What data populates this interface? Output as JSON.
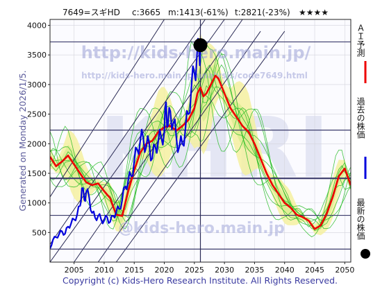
{
  "header": {
    "code_name": "7649=スギHD",
    "current": "c:3665",
    "min": "m:1413(-61%)",
    "target": "t:2821(-23%)",
    "stars": "★★★★"
  },
  "side_label": "Generated on Monday 2026/1/5.",
  "legend": {
    "ai_label": "ＡＩ予測",
    "past_label": "過去の株価",
    "latest_label": "最新の株価",
    "ai_color": "#ee0000",
    "past_color": "#0000dd",
    "latest_color": "#000000"
  },
  "watermarks": {
    "url_main": "http://kids-hero.main.jp/",
    "url_page": "http://kids-hero.main.jp/analysis/code7649.html",
    "email": "@kids-hero.main.jp",
    "logo_text": "KHRI"
  },
  "copyright": "Copyright (c) Kids-Hero Research Institute. All Rights Reserved.",
  "chart_data": {
    "type": "line",
    "xlim": [
      2001,
      2051
    ],
    "ylim": [
      0,
      4100
    ],
    "x_ticks": [
      2005,
      2010,
      2015,
      2020,
      2025,
      2030,
      2035,
      2040,
      2045,
      2050
    ],
    "y_ticks": [
      500,
      1000,
      1500,
      2000,
      2500,
      3000,
      3500,
      4000
    ],
    "grid": true,
    "horizontal_levels": [
      3720,
      2230,
      1415,
      790,
      220
    ],
    "latest_point": {
      "x": 2026.0,
      "y": 3665
    },
    "vertical_marker_x": 2026.0,
    "band_color": "#f5f0a0",
    "band_lines_color": "#22bb22",
    "past_series": [
      [
        2001.0,
        230
      ],
      [
        2001.5,
        380
      ],
      [
        2002.0,
        420
      ],
      [
        2002.5,
        470
      ],
      [
        2003.0,
        520
      ],
      [
        2003.5,
        480
      ],
      [
        2004.0,
        600
      ],
      [
        2004.5,
        650
      ],
      [
        2005.0,
        720
      ],
      [
        2005.5,
        800
      ],
      [
        2006.0,
        950
      ],
      [
        2006.3,
        1250
      ],
      [
        2006.7,
        1050
      ],
      [
        2007.0,
        1180
      ],
      [
        2007.5,
        1100
      ],
      [
        2008.0,
        830
      ],
      [
        2008.5,
        750
      ],
      [
        2009.0,
        780
      ],
      [
        2009.5,
        720
      ],
      [
        2010.0,
        700
      ],
      [
        2010.5,
        760
      ],
      [
        2011.0,
        680
      ],
      [
        2011.5,
        780
      ],
      [
        2012.0,
        850
      ],
      [
        2012.5,
        900
      ],
      [
        2013.0,
        1050
      ],
      [
        2013.5,
        1280
      ],
      [
        2014.0,
        1380
      ],
      [
        2014.5,
        1450
      ],
      [
        2015.0,
        1700
      ],
      [
        2015.5,
        1900
      ],
      [
        2016.0,
        2050
      ],
      [
        2016.5,
        2100
      ],
      [
        2017.0,
        1950
      ],
      [
        2017.5,
        2000
      ],
      [
        2018.0,
        1750
      ],
      [
        2018.5,
        1950
      ],
      [
        2019.0,
        2050
      ],
      [
        2019.5,
        2100
      ],
      [
        2020.0,
        2200
      ],
      [
        2020.3,
        2700
      ],
      [
        2020.6,
        2300
      ],
      [
        2021.0,
        2550
      ],
      [
        2021.5,
        2350
      ],
      [
        2022.0,
        2100
      ],
      [
        2022.5,
        1950
      ],
      [
        2023.0,
        2000
      ],
      [
        2023.5,
        2250
      ],
      [
        2024.0,
        2500
      ],
      [
        2024.5,
        2950
      ],
      [
        2025.0,
        3200
      ],
      [
        2025.4,
        3450
      ],
      [
        2025.8,
        3550
      ],
      [
        2026.0,
        3665
      ]
    ],
    "ai_series": [
      [
        2001.0,
        1780
      ],
      [
        2002.0,
        1620
      ],
      [
        2003.0,
        1700
      ],
      [
        2004.0,
        1800
      ],
      [
        2005.0,
        1650
      ],
      [
        2006.0,
        1500
      ],
      [
        2007.0,
        1350
      ],
      [
        2008.0,
        1300
      ],
      [
        2009.0,
        1330
      ],
      [
        2010.0,
        1200
      ],
      [
        2011.0,
        1080
      ],
      [
        2012.0,
        800
      ],
      [
        2013.0,
        780
      ],
      [
        2014.0,
        1200
      ],
      [
        2015.0,
        1550
      ],
      [
        2016.0,
        1850
      ],
      [
        2017.0,
        2000
      ],
      [
        2018.0,
        2050
      ],
      [
        2019.0,
        2200
      ],
      [
        2020.0,
        2280
      ],
      [
        2021.0,
        2300
      ],
      [
        2022.0,
        2220
      ],
      [
        2023.0,
        2300
      ],
      [
        2024.0,
        2400
      ],
      [
        2025.0,
        2600
      ],
      [
        2025.5,
        2850
      ],
      [
        2026.0,
        2950
      ],
      [
        2026.5,
        2800
      ],
      [
        2027.0,
        2850
      ],
      [
        2027.5,
        2950
      ],
      [
        2028.0,
        3050
      ],
      [
        2028.5,
        3150
      ],
      [
        2029.0,
        3100
      ],
      [
        2030.0,
        2850
      ],
      [
        2031.0,
        2600
      ],
      [
        2032.0,
        2450
      ],
      [
        2033.0,
        2300
      ],
      [
        2034.0,
        2200
      ],
      [
        2035.0,
        2000
      ],
      [
        2036.0,
        1750
      ],
      [
        2037.0,
        1500
      ],
      [
        2038.0,
        1300
      ],
      [
        2039.0,
        1150
      ],
      [
        2040.0,
        1000
      ],
      [
        2041.0,
        920
      ],
      [
        2042.0,
        800
      ],
      [
        2043.0,
        760
      ],
      [
        2044.0,
        700
      ],
      [
        2045.0,
        560
      ],
      [
        2046.0,
        620
      ],
      [
        2047.0,
        820
      ],
      [
        2048.0,
        1100
      ],
      [
        2049.0,
        1450
      ],
      [
        2050.0,
        1580
      ],
      [
        2051.0,
        1300
      ]
    ]
  }
}
